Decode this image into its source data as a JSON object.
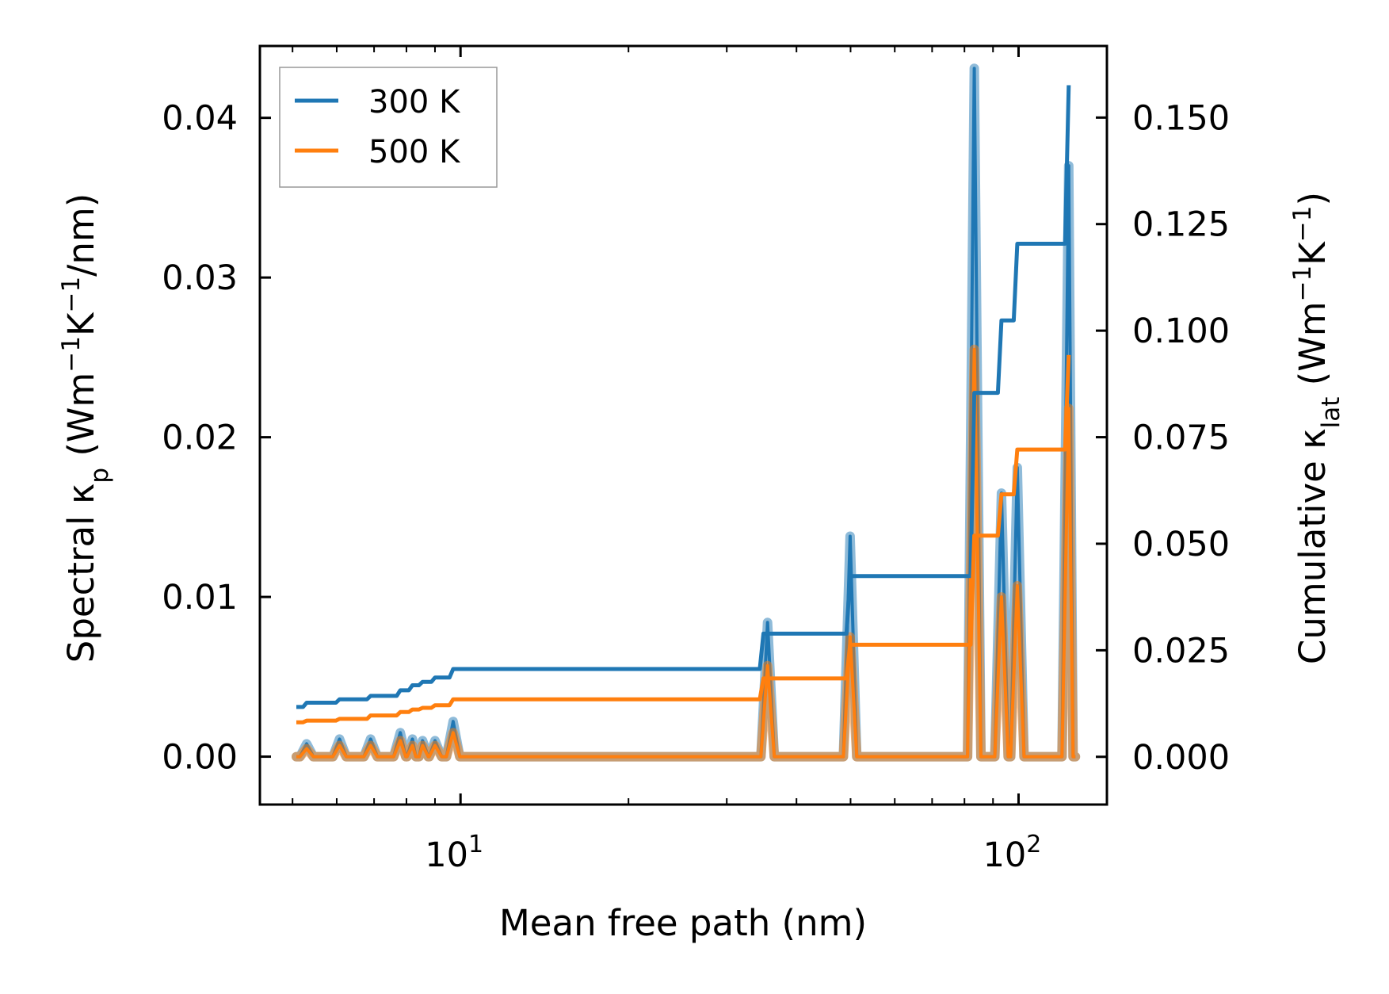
{
  "chart_data": {
    "type": "line",
    "xscale": "log",
    "xlabel": "Mean free path (nm)",
    "ylabel_left": [
      {
        "t": "Spectral κ"
      },
      {
        "t": "p",
        "sub": true
      },
      {
        "t": " (Wm"
      },
      {
        "t": "−1",
        "sup": true
      },
      {
        "t": "K"
      },
      {
        "t": "−1",
        "sup": true
      },
      {
        "t": "/nm)"
      }
    ],
    "ylabel_right": [
      {
        "t": "Cumulative κ"
      },
      {
        "t": "lat",
        "sub": true
      },
      {
        "t": " (Wm"
      },
      {
        "t": "−1",
        "sup": true
      },
      {
        "t": "K"
      },
      {
        "t": "−1",
        "sup": true
      },
      {
        "t": ")"
      }
    ],
    "xlim": [
      4.37,
      144
    ],
    "ylim_left": [
      -0.003,
      0.0445
    ],
    "ylim_right": [
      -0.0112,
      0.1668
    ],
    "x_major_ticks": [
      {
        "value": 10,
        "base": "10",
        "exp": "1"
      },
      {
        "value": 100,
        "base": "10",
        "exp": "2"
      }
    ],
    "x_minor_ticks": [
      5,
      6,
      7,
      8,
      9,
      20,
      30,
      40,
      50,
      60,
      70,
      80,
      90
    ],
    "y_left_ticks": [
      {
        "value": 0,
        "label": "0.00"
      },
      {
        "value": 0.01,
        "label": "0.01"
      },
      {
        "value": 0.02,
        "label": "0.02"
      },
      {
        "value": 0.03,
        "label": "0.03"
      },
      {
        "value": 0.04,
        "label": "0.04"
      }
    ],
    "y_right_ticks": [
      {
        "value": 0,
        "label": "0.000"
      },
      {
        "value": 0.025,
        "label": "0.025"
      },
      {
        "value": 0.05,
        "label": "0.050"
      },
      {
        "value": 0.075,
        "label": "0.075"
      },
      {
        "value": 0.1,
        "label": "0.100"
      },
      {
        "value": 0.125,
        "label": "0.125"
      },
      {
        "value": 0.15,
        "label": "0.150"
      }
    ],
    "legend": {
      "placement": "top-left",
      "entries": [
        {
          "label": "300 K",
          "color": "#1f77b4"
        },
        {
          "label": "500 K",
          "color": "#ff7f0e"
        }
      ]
    },
    "x_range_data": [
      5.08,
      124
    ],
    "series": [
      {
        "name": "300 K",
        "color": "#1f77b4",
        "spectral_peaks": {
          "x": [
            5.3,
            6.07,
            6.9,
            7.8,
            8.2,
            8.55,
            9.0,
            9.7,
            35.5,
            49.9,
            83.3,
            93.2,
            99.5,
            123
          ],
          "y": [
            0.0008,
            0.0011,
            0.0011,
            0.0015,
            0.0011,
            0.001,
            0.001,
            0.0022,
            0.0084,
            0.0138,
            0.0431,
            0.0165,
            0.0181,
            0.037
          ]
        },
        "cumulative": {
          "x": [
            5.08,
            5.3,
            6.07,
            6.9,
            7.8,
            8.2,
            8.55,
            9.0,
            9.7,
            34.9,
            49.9,
            83.3,
            93.2,
            99.5,
            123
          ],
          "y": [
            0.0117,
            0.0127,
            0.0135,
            0.0143,
            0.0156,
            0.0168,
            0.0176,
            0.0186,
            0.0206,
            0.0289,
            0.0424,
            0.0854,
            0.1024,
            0.1204,
            0.1576
          ]
        }
      },
      {
        "name": "500 K",
        "color": "#ff7f0e",
        "spectral_peaks": {
          "x": [
            5.3,
            6.07,
            6.9,
            7.8,
            8.2,
            8.55,
            9.0,
            9.7,
            35.5,
            49.9,
            83.3,
            93.2,
            99.5,
            123
          ],
          "y": [
            0.0005,
            0.0007,
            0.0007,
            0.001,
            0.0007,
            0.0007,
            0.0007,
            0.0015,
            0.0057,
            0.0075,
            0.0255,
            0.01,
            0.0107,
            0.0218
          ]
        },
        "cumulative": {
          "x": [
            5.08,
            5.3,
            6.07,
            6.9,
            7.8,
            8.2,
            8.55,
            9.0,
            9.7,
            34.9,
            49.9,
            83.3,
            93.2,
            99.5,
            123
          ],
          "y": [
            0.0081,
            0.0085,
            0.0089,
            0.0097,
            0.0105,
            0.0111,
            0.0115,
            0.0121,
            0.0135,
            0.0184,
            0.0263,
            0.0519,
            0.0616,
            0.0721,
            0.0943
          ]
        }
      }
    ]
  }
}
